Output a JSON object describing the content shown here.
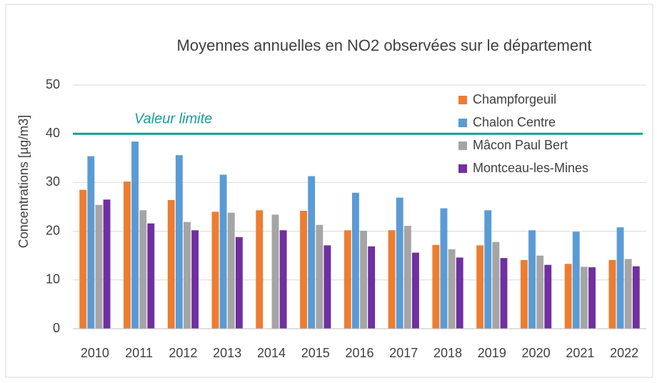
{
  "chart_data": {
    "type": "bar",
    "title": "Moyennes annuelles en NO2 observées sur le département",
    "y_label": "Concentrations [µg/m3]",
    "categories": [
      "2010",
      "2011",
      "2012",
      "2013",
      "2014",
      "2015",
      "2016",
      "2017",
      "2018",
      "2019",
      "2020",
      "2021",
      "2022"
    ],
    "series": [
      {
        "name": "Champforgeuil",
        "color": "#ed7d31",
        "values": [
          28.5,
          30.2,
          26.4,
          24.0,
          24.3,
          24.2,
          20.2,
          20.2,
          17.2,
          17.1,
          14.1,
          13.3,
          14.1
        ]
      },
      {
        "name": "Chalon Centre",
        "color": "#5b9bd5",
        "values": [
          35.4,
          38.4,
          35.6,
          31.6,
          null,
          31.3,
          27.9,
          26.9,
          24.7,
          24.3,
          20.2,
          19.9,
          20.8
        ]
      },
      {
        "name": "Mâcon Paul Bert",
        "color": "#a5a5a5",
        "values": [
          25.4,
          24.3,
          21.9,
          23.8,
          23.4,
          21.3,
          20.1,
          21.1,
          16.3,
          17.8,
          15.0,
          12.7,
          14.3
        ]
      },
      {
        "name": "Montceau-les-Mines",
        "color": "#7030a0",
        "values": [
          26.5,
          21.6,
          20.2,
          18.8,
          20.2,
          17.1,
          16.9,
          15.6,
          14.6,
          14.5,
          13.1,
          12.6,
          12.8
        ]
      }
    ],
    "reference_line": {
      "value": 40,
      "label": "Valeur limite",
      "color": "#1a9e9a"
    },
    "ylim": [
      0,
      50
    ],
    "yticks": [
      0,
      10,
      20,
      30,
      40,
      50
    ],
    "grid": true,
    "legend": "top-right"
  }
}
